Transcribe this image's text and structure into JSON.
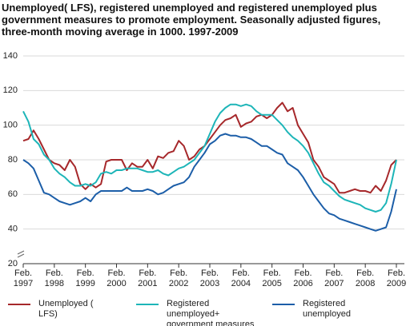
{
  "chart_data": {
    "type": "line",
    "title": "Unemployed( LFS), registered unemployed and registered unemployed plus government measures to promote employment. Seasonally adjusted figures, three-month moving average in 1000. 1997-2009",
    "categories": [
      "Feb. 1997",
      null,
      null,
      null,
      null,
      null,
      "Feb. 1998",
      null,
      null,
      null,
      null,
      null,
      "Feb. 1999",
      null,
      null,
      null,
      null,
      null,
      "Feb. 2000",
      null,
      null,
      null,
      null,
      null,
      "Feb. 2001",
      null,
      null,
      null,
      null,
      null,
      "Feb. 2002",
      null,
      null,
      null,
      null,
      null,
      "Feb. 2003",
      null,
      null,
      null,
      null,
      null,
      "Feb. 2004",
      null,
      null,
      null,
      null,
      null,
      "Feb. 2005",
      null,
      null,
      null,
      null,
      null,
      "Feb. 2006",
      null,
      null,
      null,
      null,
      null,
      "Feb. 2007",
      null,
      null,
      null,
      null,
      null,
      "Feb. 2008",
      null,
      null,
      null,
      null,
      null,
      "Feb. 2009"
    ],
    "series": [
      {
        "name": "Unemployed ( LFS)",
        "color": "#a6282b",
        "values": [
          91,
          92,
          97,
          92,
          86,
          80,
          78,
          77,
          74,
          80,
          76,
          66,
          63,
          66,
          64,
          66,
          79,
          80,
          80,
          80,
          74,
          78,
          76,
          76,
          80,
          75,
          82,
          81,
          84,
          85,
          91,
          88,
          80,
          82,
          86,
          88,
          92,
          96,
          100,
          103,
          104,
          106,
          99,
          101,
          102,
          105,
          106,
          104,
          106,
          110,
          113,
          108,
          110,
          100,
          95,
          90,
          80,
          76,
          70,
          68,
          66,
          61,
          61,
          62,
          63,
          62,
          62,
          61,
          65,
          62,
          68,
          77,
          80
        ]
      },
      {
        "name": "Registered unemployed+ government measures",
        "color": "#1db5b8",
        "values": [
          108,
          102,
          92,
          89,
          83,
          80,
          75,
          72,
          70,
          67,
          65,
          65,
          66,
          65,
          67,
          72,
          73,
          72,
          74,
          74,
          75,
          75,
          75,
          74,
          73,
          73,
          74,
          72,
          71,
          73,
          75,
          76,
          78,
          80,
          84,
          88,
          95,
          102,
          107,
          110,
          112,
          112,
          111,
          112,
          111,
          108,
          106,
          106,
          106,
          103,
          100,
          96,
          93,
          91,
          88,
          84,
          78,
          72,
          67,
          65,
          62,
          59,
          57,
          56,
          55,
          54,
          52,
          51,
          50,
          51,
          55,
          66,
          80
        ]
      },
      {
        "name": "Registered unemployed",
        "color": "#1c5ea8",
        "values": [
          80,
          78,
          75,
          68,
          61,
          60,
          58,
          56,
          55,
          54,
          55,
          56,
          58,
          56,
          60,
          62,
          62,
          62,
          62,
          62,
          64,
          62,
          62,
          62,
          63,
          62,
          60,
          61,
          63,
          65,
          66,
          67,
          70,
          76,
          80,
          84,
          89,
          91,
          94,
          95,
          94,
          94,
          93,
          93,
          92,
          90,
          88,
          88,
          86,
          84,
          83,
          78,
          76,
          74,
          70,
          65,
          60,
          56,
          52,
          49,
          48,
          46,
          45,
          44,
          43,
          42,
          41,
          40,
          39,
          40,
          41,
          50,
          63
        ]
      }
    ],
    "ylim": [
      20,
      140
    ],
    "yticks": [
      20,
      40,
      60,
      80,
      100,
      120,
      140
    ],
    "grid": true,
    "legend": "bottom"
  }
}
